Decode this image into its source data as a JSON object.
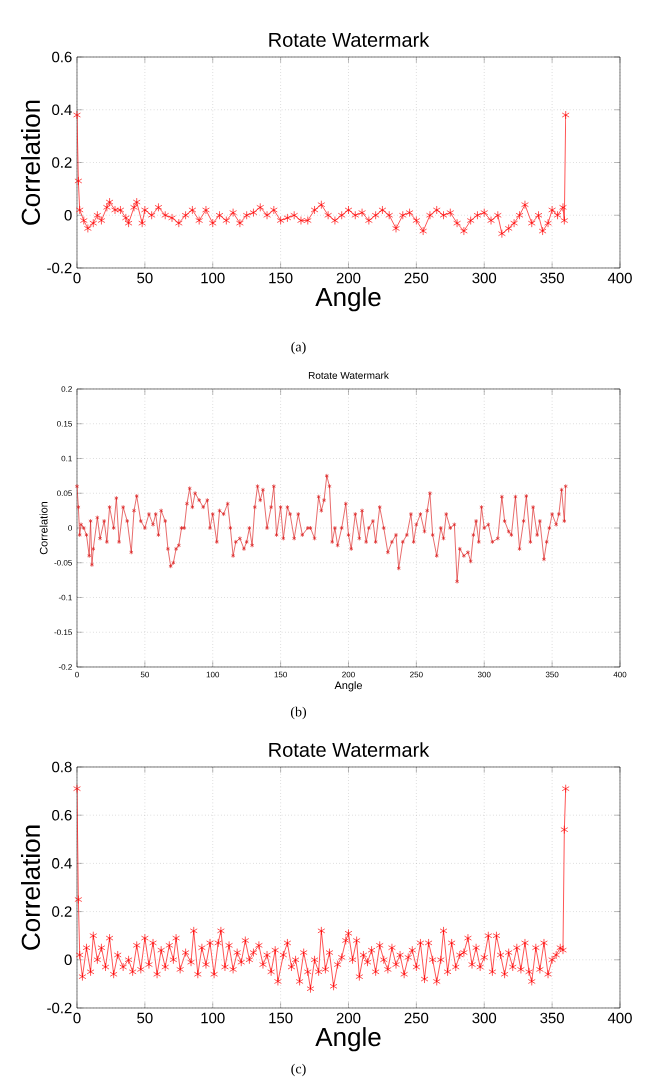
{
  "chart_data": [
    {
      "type": "line",
      "title": "Rotate Watermark",
      "xlabel": "Angle",
      "ylabel": "Correlation",
      "annotations": [
        "(a)"
      ],
      "grid": true,
      "marker": "cross",
      "line_style": "solid",
      "xlim": [
        0,
        400
      ],
      "ylim": [
        -0.2,
        0.6
      ],
      "xticks": [
        0,
        50,
        100,
        150,
        200,
        250,
        300,
        350,
        400
      ],
      "yticks": [
        -0.2,
        0,
        0.2,
        0.4,
        0.6
      ],
      "series": [
        {
          "color": "#ff0000",
          "x": [
            0,
            1,
            2,
            5,
            8,
            12,
            15,
            18,
            22,
            24,
            28,
            32,
            36,
            38,
            42,
            44,
            48,
            50,
            55,
            60,
            65,
            70,
            75,
            80,
            85,
            90,
            95,
            100,
            105,
            110,
            115,
            120,
            125,
            130,
            135,
            140,
            145,
            150,
            155,
            160,
            165,
            170,
            175,
            180,
            185,
            190,
            195,
            200,
            205,
            210,
            215,
            220,
            225,
            230,
            235,
            240,
            245,
            250,
            255,
            260,
            265,
            270,
            275,
            280,
            285,
            290,
            295,
            300,
            305,
            310,
            313,
            318,
            322,
            326,
            330,
            335,
            340,
            343,
            347,
            350,
            354,
            358,
            359,
            360
          ],
          "values": [
            0.38,
            0.13,
            0.02,
            -0.02,
            -0.05,
            -0.03,
            0.0,
            -0.02,
            0.03,
            0.05,
            0.02,
            0.02,
            -0.01,
            -0.03,
            0.03,
            0.05,
            -0.03,
            0.02,
            0.0,
            0.03,
            0.0,
            -0.01,
            -0.03,
            0.0,
            0.02,
            -0.02,
            0.02,
            -0.03,
            0.0,
            -0.02,
            0.01,
            -0.03,
            0.0,
            0.01,
            0.03,
            0.0,
            0.02,
            -0.02,
            -0.01,
            0.0,
            -0.02,
            -0.02,
            0.02,
            0.04,
            0.0,
            -0.02,
            0.0,
            0.02,
            0.0,
            0.01,
            -0.02,
            0.0,
            0.02,
            0.0,
            -0.05,
            0.0,
            0.01,
            -0.02,
            -0.06,
            0.0,
            0.02,
            0.0,
            0.01,
            -0.03,
            -0.06,
            -0.02,
            0.0,
            0.01,
            -0.02,
            0.0,
            -0.07,
            -0.05,
            -0.03,
            0.0,
            0.04,
            -0.03,
            0.0,
            -0.06,
            -0.03,
            0.02,
            0.0,
            0.03,
            -0.02,
            0.38
          ]
        }
      ]
    },
    {
      "type": "line",
      "title": "Rotate Watermark",
      "xlabel": "Angle",
      "ylabel": "Correlation",
      "annotations": [
        "(b)"
      ],
      "grid": true,
      "marker": "cross",
      "line_style": "solid",
      "xlim": [
        0,
        400
      ],
      "ylim": [
        -0.2,
        0.2
      ],
      "xticks": [
        0,
        50,
        100,
        150,
        200,
        250,
        300,
        350,
        400
      ],
      "yticks": [
        -0.2,
        -0.15,
        -0.1,
        -0.05,
        0,
        0.05,
        0.1,
        0.15,
        0.2
      ],
      "series": [
        {
          "color": "#dd2222",
          "x": [
            0,
            1,
            2,
            3,
            5,
            7,
            9,
            10,
            11,
            12,
            15,
            17,
            20,
            22,
            24,
            27,
            29,
            31,
            34,
            37,
            40,
            42,
            44,
            47,
            50,
            53,
            56,
            58,
            60,
            62,
            65,
            67,
            69,
            71,
            73,
            75,
            77,
            79,
            81,
            83,
            85,
            87,
            90,
            93,
            96,
            98,
            100,
            103,
            105,
            108,
            111,
            113,
            115,
            117,
            120,
            123,
            125,
            127,
            129,
            131,
            133,
            135,
            137,
            140,
            143,
            145,
            147,
            150,
            152,
            155,
            157,
            160,
            163,
            166,
            170,
            172,
            175,
            178,
            180,
            182,
            184,
            186,
            188,
            190,
            192,
            195,
            198,
            200,
            202,
            205,
            208,
            210,
            213,
            215,
            218,
            220,
            223,
            226,
            229,
            232,
            235,
            237,
            240,
            243,
            246,
            248,
            250,
            253,
            256,
            258,
            260,
            262,
            265,
            268,
            270,
            272,
            275,
            278,
            280,
            282,
            285,
            288,
            290,
            292,
            294,
            296,
            298,
            300,
            303,
            306,
            310,
            313,
            315,
            318,
            320,
            323,
            326,
            329,
            331,
            334,
            336,
            339,
            341,
            344,
            346,
            348,
            350,
            353,
            355,
            357,
            359,
            360
          ],
          "values": [
            0.06,
            0.03,
            -0.01,
            0.005,
            0.0,
            -0.01,
            -0.04,
            0.01,
            -0.053,
            -0.03,
            0.015,
            -0.015,
            0.01,
            -0.02,
            0.03,
            0.0,
            0.043,
            -0.02,
            0.03,
            0.01,
            -0.035,
            0.025,
            0.046,
            0.01,
            0.0,
            0.02,
            0.005,
            0.02,
            -0.01,
            0.025,
            0.01,
            -0.03,
            -0.055,
            -0.05,
            -0.03,
            -0.025,
            0.0,
            0.0,
            0.035,
            0.057,
            0.03,
            0.05,
            0.04,
            0.03,
            0.04,
            0.0,
            0.02,
            -0.02,
            0.025,
            0.02,
            0.035,
            0.0,
            -0.04,
            -0.02,
            -0.015,
            -0.03,
            -0.02,
            0.0,
            -0.025,
            0.03,
            0.06,
            0.04,
            0.055,
            0.0,
            0.03,
            0.06,
            -0.01,
            0.03,
            -0.015,
            0.03,
            0.02,
            -0.015,
            0.02,
            -0.01,
            0.0,
            0.0,
            -0.015,
            0.045,
            0.025,
            0.04,
            0.075,
            0.06,
            -0.02,
            0.0,
            -0.025,
            0.0,
            0.035,
            -0.01,
            -0.03,
            0.02,
            -0.015,
            0.025,
            -0.02,
            0.0,
            0.01,
            -0.02,
            0.03,
            0.0,
            -0.035,
            -0.02,
            -0.01,
            -0.058,
            -0.02,
            -0.01,
            0.02,
            -0.02,
            0.005,
            0.02,
            -0.005,
            0.025,
            0.05,
            -0.01,
            -0.04,
            0.0,
            -0.015,
            0.02,
            0.0,
            0.005,
            -0.077,
            -0.03,
            -0.04,
            -0.035,
            -0.048,
            -0.01,
            0.01,
            -0.02,
            0.03,
            0.0,
            0.005,
            -0.02,
            -0.015,
            0.045,
            0.01,
            -0.005,
            -0.01,
            0.045,
            -0.03,
            0.01,
            0.046,
            -0.02,
            0.03,
            -0.01,
            0.01,
            -0.045,
            -0.02,
            0.0,
            0.02,
            0.005,
            0.02,
            0.055,
            0.01,
            0.06
          ]
        }
      ]
    },
    {
      "type": "line",
      "title": "Rotate Watermark",
      "xlabel": "Angle",
      "ylabel": "Correlation",
      "annotations": [
        "(c)"
      ],
      "grid": true,
      "marker": "cross",
      "line_style": "solid",
      "xlim": [
        0,
        400
      ],
      "ylim": [
        -0.2,
        0.8
      ],
      "xticks": [
        0,
        50,
        100,
        150,
        200,
        250,
        300,
        350,
        400
      ],
      "yticks": [
        -0.2,
        0,
        0.2,
        0.4,
        0.6,
        0.8
      ],
      "series": [
        {
          "color": "#ff0000",
          "x": [
            0,
            1,
            2,
            4,
            7,
            10,
            12,
            15,
            18,
            21,
            24,
            27,
            30,
            34,
            38,
            41,
            44,
            47,
            50,
            53,
            56,
            59,
            62,
            65,
            68,
            71,
            73,
            76,
            80,
            84,
            86,
            89,
            92,
            95,
            98,
            101,
            104,
            106,
            109,
            112,
            115,
            118,
            121,
            124,
            127,
            130,
            134,
            137,
            140,
            143,
            146,
            148,
            152,
            155,
            158,
            161,
            164,
            167,
            170,
            172,
            175,
            178,
            180,
            183,
            186,
            189,
            192,
            195,
            198,
            200,
            203,
            206,
            208,
            211,
            214,
            217,
            220,
            223,
            226,
            229,
            232,
            235,
            238,
            241,
            244,
            247,
            250,
            253,
            256,
            259,
            262,
            265,
            268,
            270,
            273,
            276,
            279,
            282,
            285,
            288,
            291,
            294,
            297,
            300,
            303,
            306,
            309,
            312,
            315,
            318,
            321,
            324,
            327,
            330,
            333,
            335,
            338,
            341,
            344,
            347,
            350,
            353,
            356,
            358,
            359,
            360
          ],
          "values": [
            0.71,
            0.25,
            0.02,
            -0.07,
            0.05,
            -0.05,
            0.1,
            0.0,
            0.05,
            -0.03,
            0.09,
            -0.06,
            0.02,
            -0.03,
            0.0,
            -0.05,
            0.06,
            -0.04,
            0.09,
            -0.02,
            0.07,
            -0.06,
            0.04,
            -0.03,
            0.06,
            0.0,
            0.09,
            -0.04,
            0.03,
            -0.01,
            0.12,
            -0.06,
            0.05,
            -0.02,
            0.07,
            -0.06,
            0.07,
            0.12,
            -0.03,
            0.06,
            -0.04,
            0.03,
            -0.01,
            0.08,
            0.0,
            0.03,
            0.06,
            -0.02,
            0.02,
            -0.05,
            0.04,
            -0.09,
            0.02,
            0.07,
            -0.03,
            0.0,
            -0.09,
            0.03,
            -0.05,
            -0.12,
            0.0,
            -0.05,
            0.12,
            -0.04,
            0.03,
            -0.11,
            -0.02,
            0.01,
            0.08,
            0.11,
            0.0,
            0.08,
            -0.07,
            0.02,
            -0.01,
            0.04,
            -0.05,
            0.06,
            0.0,
            -0.04,
            0.05,
            -0.02,
            0.02,
            -0.06,
            0.01,
            0.04,
            -0.03,
            0.07,
            -0.08,
            0.07,
            0.0,
            -0.09,
            0.0,
            0.12,
            -0.05,
            0.07,
            -0.03,
            0.02,
            0.03,
            0.09,
            -0.02,
            0.05,
            -0.03,
            0.01,
            0.1,
            -0.05,
            0.1,
            0.02,
            -0.06,
            0.03,
            -0.03,
            0.05,
            -0.04,
            0.07,
            -0.05,
            -0.09,
            0.05,
            -0.04,
            0.07,
            -0.06,
            0.0,
            0.02,
            0.05,
            0.04,
            0.54,
            0.71
          ]
        }
      ]
    }
  ]
}
